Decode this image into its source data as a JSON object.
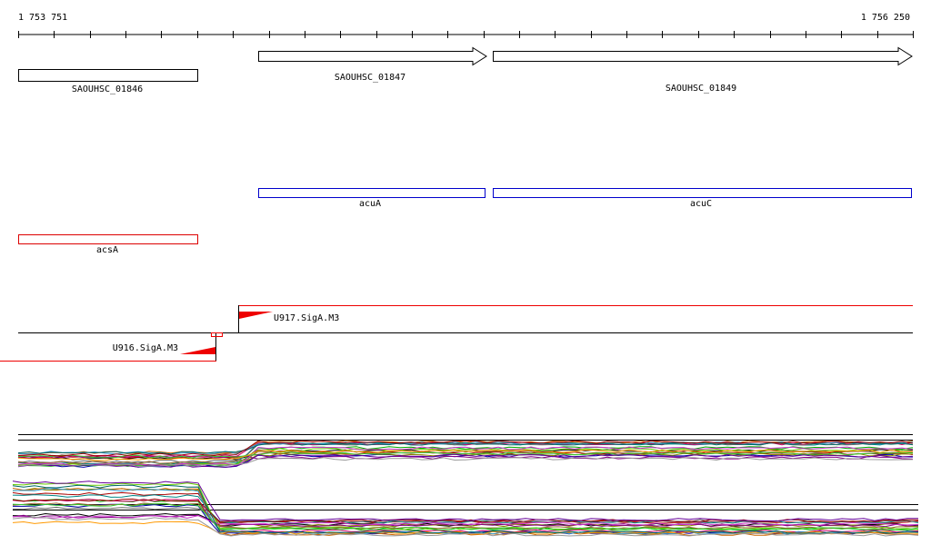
{
  "ruler": {
    "start": "1 753 751",
    "end": "1 756 250"
  },
  "genes": [
    {
      "label": "SAOUHSC_01846"
    },
    {
      "label": "SAOUHSC_01847"
    },
    {
      "label": "SAOUHSC_01849"
    }
  ],
  "operons": [
    {
      "label": "acuA"
    },
    {
      "label": "acuC"
    },
    {
      "label": "acsA"
    }
  ],
  "promoters": [
    {
      "label": "U917.SigA.M3"
    },
    {
      "label": "U916.SigA.M3"
    }
  ]
}
